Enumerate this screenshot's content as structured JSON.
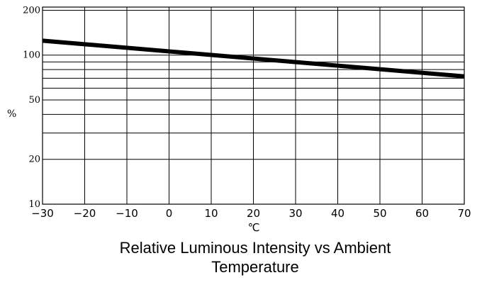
{
  "chart_data": {
    "type": "line",
    "title_lines": [
      "Relative Luminous Intensity vs Ambient",
      "Temperature"
    ],
    "xlabel": "℃",
    "ylabel": "%",
    "yscale": "log",
    "xlim": [
      -30,
      70
    ],
    "ylim": [
      10,
      210
    ],
    "x_ticks": [
      -30,
      -20,
      -10,
      0,
      10,
      20,
      30,
      40,
      50,
      60,
      70
    ],
    "x_tick_labels": [
      "−30",
      "−20",
      "−10",
      "0",
      "10",
      "20",
      "30",
      "40",
      "50",
      "60",
      "70"
    ],
    "y_tick_values": [
      10,
      20,
      50,
      100,
      200
    ],
    "y_tick_labels": [
      "10",
      "20",
      "50",
      "100",
      "200"
    ],
    "y_gridlines": [
      10,
      20,
      30,
      40,
      50,
      60,
      70,
      80,
      90,
      100,
      200
    ],
    "grid": true,
    "series": [
      {
        "x": [
          -30,
          70
        ],
        "y": [
          125,
          72
        ]
      }
    ]
  }
}
